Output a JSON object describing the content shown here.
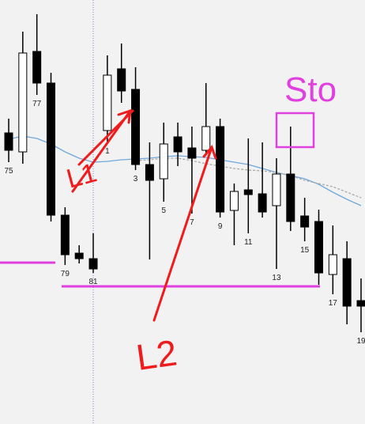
{
  "chart_data": {
    "type": "candlestick",
    "categories": [
      "75",
      null,
      "77",
      null,
      "79",
      null,
      "81",
      "1",
      null,
      "3",
      null,
      "5",
      null,
      "7",
      null,
      "9",
      null,
      "11",
      null,
      "13",
      null,
      "15",
      null,
      "17",
      null,
      "19"
    ],
    "open": [
      368,
      344,
      471,
      431,
      264,
      216,
      209,
      371,
      449,
      423,
      328,
      310,
      363,
      349,
      346,
      376,
      270,
      296,
      291,
      276,
      316,
      263,
      256,
      189,
      209,
      156
    ],
    "high": [
      386,
      496,
      518,
      444,
      274,
      226,
      241,
      466,
      481,
      451,
      356,
      381,
      381,
      376,
      431,
      386,
      304,
      361,
      356,
      336,
      376,
      286,
      271,
      251,
      231,
      184
    ],
    "low": [
      331,
      329,
      416,
      256,
      201,
      203,
      191,
      356,
      406,
      321,
      208,
      281,
      326,
      266,
      341,
      261,
      226,
      241,
      261,
      196,
      244,
      231,
      176,
      164,
      126,
      116
    ],
    "close": [
      346,
      469,
      431,
      264,
      214,
      209,
      196,
      441,
      421,
      328,
      308,
      354,
      344,
      336,
      376,
      268,
      294,
      290,
      268,
      316,
      256,
      249,
      191,
      214,
      149,
      149
    ],
    "series": [
      {
        "color": "#6fa8dc",
        "values": [
          360,
          364,
          361,
          354,
          344,
          336,
          331,
          332,
          334,
          335,
          336,
          338,
          339,
          338,
          337,
          334,
          331,
          328,
          323,
          318,
          314,
          310,
          303,
          293,
          284,
          276
        ]
      },
      {
        "color": "#aaaaaa",
        "values": [
          null,
          null,
          null,
          null,
          null,
          null,
          null,
          null,
          null,
          333,
          334,
          336,
          336,
          333,
          329,
          326,
          323,
          321,
          320,
          318,
          314,
          308,
          304,
          300,
          293,
          286
        ]
      }
    ],
    "ylim": [
      0,
      536
    ],
    "annotations": [
      "L1",
      "L2",
      "Sto"
    ]
  }
}
